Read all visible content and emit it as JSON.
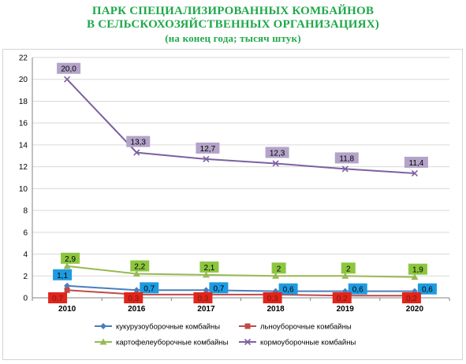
{
  "title_line1": "ПАРК СПЕЦИАЛИЗИРОВАННЫХ КОМБАЙНОВ",
  "title_line2": "В СЕЛЬСКОХОЗЯЙСТВЕННЫХ ОРГАНИЗАЦИЯХ)",
  "subtitle": "(на конец года; тысяч штук)",
  "chart_data": {
    "type": "line",
    "categories": [
      "2010",
      "2016",
      "2017",
      "2018",
      "2019",
      "2020"
    ],
    "ylim": [
      0,
      22
    ],
    "yticks": [
      "0",
      "2",
      "4",
      "6",
      "8",
      "10",
      "12",
      "14",
      "16",
      "18",
      "20",
      "22"
    ],
    "grid": "horizontal",
    "legend_position": "bottom",
    "series": [
      {
        "name": "кукурузоуборочные комбайны",
        "values": [
          1.1,
          0.7,
          0.7,
          0.6,
          0.6,
          0.6
        ],
        "labels": [
          "1,1",
          "0,7",
          "0,7",
          "0,6",
          "0,6",
          "0,6"
        ],
        "color": "#4a7ebb",
        "label_bg": "#1e9be0",
        "marker": "diamond"
      },
      {
        "name": "льноуборочные комбайны",
        "values": [
          0.7,
          0.3,
          0.3,
          0.3,
          0.2,
          0.2
        ],
        "labels": [
          "0,7",
          "0,3",
          "0,3",
          "0,3",
          "0,2",
          "0,2"
        ],
        "color": "#be4b48",
        "label_bg": "#e0251b",
        "marker": "square"
      },
      {
        "name": "картофелеуборочные комбайны",
        "values": [
          2.9,
          2.2,
          2.1,
          2,
          2,
          1.9
        ],
        "labels": [
          "2,9",
          "2,2",
          "2,1",
          "2",
          "2",
          "1,9"
        ],
        "color": "#98b954",
        "label_bg": "#8cc63f",
        "marker": "triangle"
      },
      {
        "name": "кормоуборочные комбайны",
        "values": [
          20.0,
          13.3,
          12.7,
          12.3,
          11.8,
          11.4
        ],
        "labels": [
          "20,0",
          "13,3",
          "12,7",
          "12,3",
          "11,8",
          "11,4"
        ],
        "color": "#7d60a0",
        "label_bg": "#b4a3c9",
        "marker": "x"
      }
    ]
  }
}
